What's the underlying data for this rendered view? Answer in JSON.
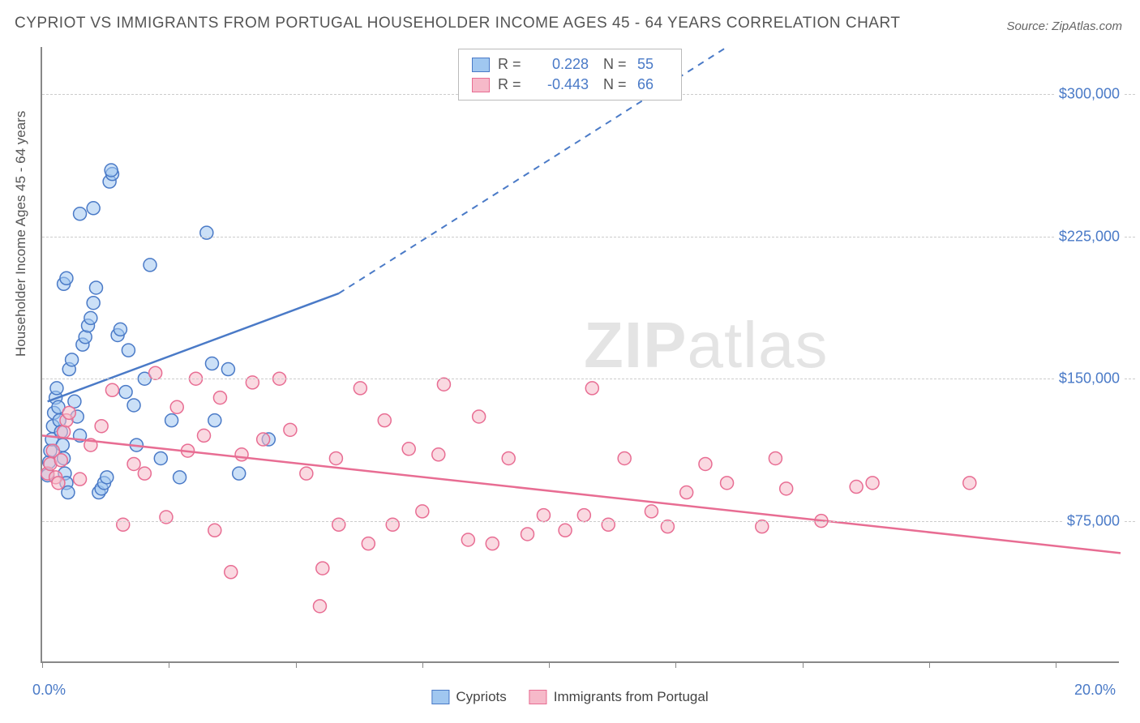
{
  "title": "CYPRIOT VS IMMIGRANTS FROM PORTUGAL HOUSEHOLDER INCOME AGES 45 - 64 YEARS CORRELATION CHART",
  "source": "Source: ZipAtlas.com",
  "ylabel": "Householder Income Ages 45 - 64 years",
  "watermark_bold": "ZIP",
  "watermark_light": "atlas",
  "chart": {
    "type": "scatter",
    "xlim": [
      0,
      20
    ],
    "ylim": [
      0,
      325000
    ],
    "x_tick_positions": [
      0,
      2.35,
      4.7,
      7.05,
      9.4,
      11.75,
      14.1,
      16.45,
      18.8
    ],
    "y_gridlines": [
      75000,
      150000,
      225000,
      300000
    ],
    "y_tick_labels": [
      "$75,000",
      "$150,000",
      "$225,000",
      "$300,000"
    ],
    "x_axis_min_label": "0.0%",
    "x_axis_max_label": "20.0%",
    "background_color": "#ffffff",
    "grid_color": "#cccccc",
    "axis_color": "#888888",
    "tick_label_color": "#4a7ac7",
    "marker_radius": 8,
    "marker_stroke_width": 1.5,
    "trend_line_width": 2.5,
    "series": [
      {
        "name": "Cypriots",
        "fill_color": "#a0c7f0",
        "stroke_color": "#4a7ac7",
        "fill_opacity": 0.55,
        "r_value": "0.228",
        "n_value": "55",
        "trend_line": {
          "x1": 0.1,
          "y1": 138000,
          "x2": 5.5,
          "y2": 195000,
          "dash_ext_x2": 12.7,
          "dash_ext_y2": 325000
        },
        "points": [
          [
            0.1,
            99000
          ],
          [
            0.13,
            106000
          ],
          [
            0.15,
            112000
          ],
          [
            0.18,
            118000
          ],
          [
            0.2,
            125000
          ],
          [
            0.22,
            132000
          ],
          [
            0.25,
            140000
          ],
          [
            0.27,
            145000
          ],
          [
            0.3,
            135000
          ],
          [
            0.32,
            128000
          ],
          [
            0.35,
            122000
          ],
          [
            0.38,
            115000
          ],
          [
            0.4,
            108000
          ],
          [
            0.42,
            100000
          ],
          [
            0.45,
            95000
          ],
          [
            0.48,
            90000
          ],
          [
            0.5,
            155000
          ],
          [
            0.55,
            160000
          ],
          [
            0.6,
            138000
          ],
          [
            0.65,
            130000
          ],
          [
            0.7,
            120000
          ],
          [
            0.75,
            168000
          ],
          [
            0.8,
            172000
          ],
          [
            0.85,
            178000
          ],
          [
            0.9,
            182000
          ],
          [
            0.95,
            190000
          ],
          [
            1.0,
            198000
          ],
          [
            1.05,
            90000
          ],
          [
            1.1,
            92000
          ],
          [
            1.15,
            95000
          ],
          [
            1.2,
            98000
          ],
          [
            1.25,
            254000
          ],
          [
            1.3,
            258000
          ],
          [
            1.28,
            260000
          ],
          [
            0.7,
            237000
          ],
          [
            0.95,
            240000
          ],
          [
            0.4,
            200000
          ],
          [
            0.45,
            203000
          ],
          [
            1.4,
            173000
          ],
          [
            1.45,
            176000
          ],
          [
            1.6,
            165000
          ],
          [
            1.55,
            143000
          ],
          [
            1.7,
            136000
          ],
          [
            1.75,
            115000
          ],
          [
            1.9,
            150000
          ],
          [
            2.0,
            210000
          ],
          [
            2.2,
            108000
          ],
          [
            2.4,
            128000
          ],
          [
            2.55,
            98000
          ],
          [
            3.15,
            158000
          ],
          [
            3.2,
            128000
          ],
          [
            3.05,
            227000
          ],
          [
            3.45,
            155000
          ],
          [
            3.65,
            100000
          ],
          [
            4.2,
            118000
          ]
        ]
      },
      {
        "name": "Immigrants from Portugal",
        "fill_color": "#f6b9c9",
        "stroke_color": "#e86d93",
        "fill_opacity": 0.55,
        "r_value": "-0.443",
        "n_value": "66",
        "trend_line": {
          "x1": 0,
          "y1": 120000,
          "x2": 20,
          "y2": 58000
        },
        "points": [
          [
            0.1,
            100000
          ],
          [
            0.15,
            105000
          ],
          [
            0.2,
            112000
          ],
          [
            0.25,
            98000
          ],
          [
            0.3,
            95000
          ],
          [
            0.35,
            107000
          ],
          [
            0.4,
            122000
          ],
          [
            0.45,
            128000
          ],
          [
            0.5,
            132000
          ],
          [
            0.7,
            97000
          ],
          [
            0.9,
            115000
          ],
          [
            1.1,
            125000
          ],
          [
            1.3,
            144000
          ],
          [
            1.5,
            73000
          ],
          [
            1.7,
            105000
          ],
          [
            1.9,
            100000
          ],
          [
            2.1,
            153000
          ],
          [
            2.3,
            77000
          ],
          [
            2.5,
            135000
          ],
          [
            2.7,
            112000
          ],
          [
            2.85,
            150000
          ],
          [
            3.0,
            120000
          ],
          [
            3.2,
            70000
          ],
          [
            3.3,
            140000
          ],
          [
            3.5,
            48000
          ],
          [
            3.7,
            110000
          ],
          [
            3.9,
            148000
          ],
          [
            4.1,
            118000
          ],
          [
            4.4,
            150000
          ],
          [
            4.6,
            123000
          ],
          [
            4.9,
            100000
          ],
          [
            5.15,
            30000
          ],
          [
            5.2,
            50000
          ],
          [
            5.5,
            73000
          ],
          [
            5.45,
            108000
          ],
          [
            5.9,
            145000
          ],
          [
            6.05,
            63000
          ],
          [
            6.35,
            128000
          ],
          [
            6.5,
            73000
          ],
          [
            6.8,
            113000
          ],
          [
            7.05,
            80000
          ],
          [
            7.35,
            110000
          ],
          [
            7.45,
            147000
          ],
          [
            7.9,
            65000
          ],
          [
            8.1,
            130000
          ],
          [
            8.35,
            63000
          ],
          [
            8.65,
            108000
          ],
          [
            9.0,
            68000
          ],
          [
            9.3,
            78000
          ],
          [
            9.7,
            70000
          ],
          [
            10.05,
            78000
          ],
          [
            10.2,
            145000
          ],
          [
            10.5,
            73000
          ],
          [
            10.8,
            108000
          ],
          [
            11.3,
            80000
          ],
          [
            11.6,
            72000
          ],
          [
            11.95,
            90000
          ],
          [
            12.3,
            105000
          ],
          [
            12.7,
            95000
          ],
          [
            13.35,
            72000
          ],
          [
            13.6,
            108000
          ],
          [
            13.8,
            92000
          ],
          [
            14.45,
            75000
          ],
          [
            15.1,
            93000
          ],
          [
            15.4,
            95000
          ],
          [
            17.2,
            95000
          ]
        ]
      }
    ]
  },
  "legend_top_rows": [
    {
      "swatch_fill": "#a0c7f0",
      "swatch_stroke": "#4a7ac7",
      "r": "0.228",
      "n": "55"
    },
    {
      "swatch_fill": "#f6b9c9",
      "swatch_stroke": "#e86d93",
      "r": "-0.443",
      "n": "66"
    }
  ],
  "legend_bottom_items": [
    {
      "swatch_fill": "#a0c7f0",
      "swatch_stroke": "#4a7ac7",
      "label": "Cypriots"
    },
    {
      "swatch_fill": "#f6b9c9",
      "swatch_stroke": "#e86d93",
      "label": "Immigrants from Portugal"
    }
  ],
  "r_label": "R =",
  "n_label": "N ="
}
